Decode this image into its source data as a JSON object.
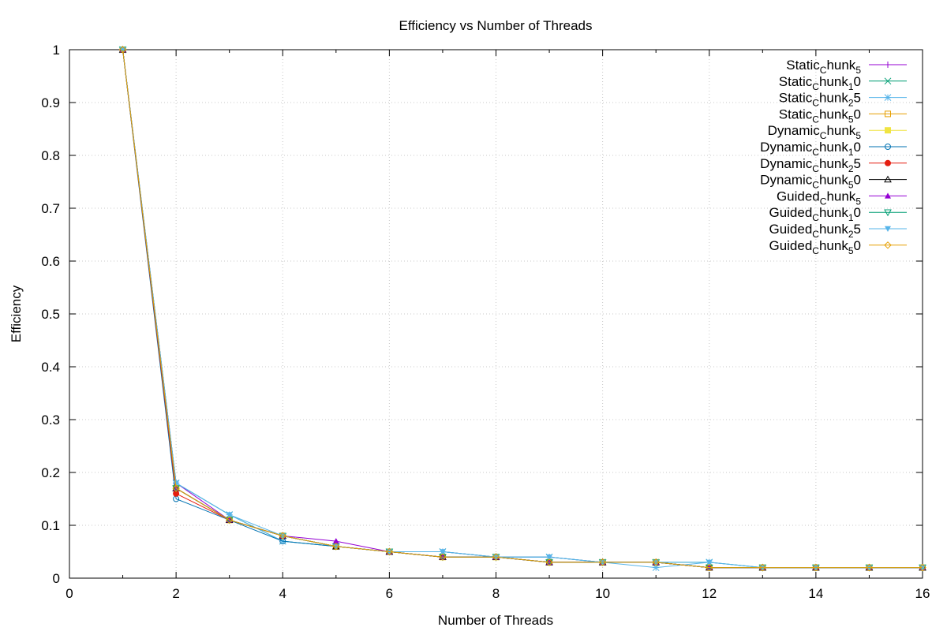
{
  "chart_data": {
    "type": "line",
    "title": "Efficiency vs Number of Threads",
    "xlabel": "Number of Threads",
    "ylabel": "Efficiency",
    "xlim": [
      0,
      16
    ],
    "ylim": [
      0,
      1
    ],
    "xticks": [
      "0",
      "2",
      "4",
      "6",
      "8",
      "10",
      "12",
      "14",
      "16"
    ],
    "yticks": [
      "0",
      "0.1",
      "0.2",
      "0.3",
      "0.4",
      "0.5",
      "0.6",
      "0.7",
      "0.8",
      "0.9",
      "1"
    ],
    "grid": true,
    "legend_position": "top-right",
    "x": [
      1,
      2,
      3,
      4,
      5,
      6,
      7,
      8,
      9,
      10,
      11,
      12,
      13,
      14,
      15,
      16
    ],
    "series": [
      {
        "name": "Static_chunk_5",
        "label_main": "Static",
        "label_sub1": "C",
        "label_mid": "hunk",
        "label_sub2": "5",
        "label_tail": "",
        "color": "#9400d3",
        "marker": "plus",
        "values": [
          1,
          0.18,
          0.11,
          0.08,
          0.06,
          0.05,
          0.05,
          0.04,
          0.04,
          0.03,
          0.03,
          0.02,
          0.02,
          0.02,
          0.02,
          0.02
        ]
      },
      {
        "name": "Static_chunk_10",
        "label_main": "Static",
        "label_sub1": "C",
        "label_mid": "hunk",
        "label_sub2": "1",
        "label_tail": "0",
        "color": "#009e73",
        "marker": "cross",
        "values": [
          1,
          0.18,
          0.12,
          0.07,
          0.06,
          0.05,
          0.05,
          0.04,
          0.04,
          0.03,
          0.03,
          0.03,
          0.02,
          0.02,
          0.02,
          0.02
        ]
      },
      {
        "name": "Static_chunk_25",
        "label_main": "Static",
        "label_sub1": "C",
        "label_mid": "hunk",
        "label_sub2": "2",
        "label_tail": "5",
        "color": "#56b4e9",
        "marker": "star",
        "values": [
          1,
          0.18,
          0.12,
          0.07,
          0.06,
          0.05,
          0.05,
          0.04,
          0.04,
          0.03,
          0.02,
          0.03,
          0.02,
          0.02,
          0.02,
          0.02
        ]
      },
      {
        "name": "Static_chunk_50",
        "label_main": "Static",
        "label_sub1": "C",
        "label_mid": "hunk",
        "label_sub2": "5",
        "label_tail": "0",
        "color": "#e69f00",
        "marker": "square-open",
        "values": [
          1,
          0.17,
          0.11,
          0.08,
          0.06,
          0.05,
          0.04,
          0.04,
          0.03,
          0.03,
          0.03,
          0.02,
          0.02,
          0.02,
          0.02,
          0.02
        ]
      },
      {
        "name": "Dynamic_chunk_5",
        "label_main": "Dynamic",
        "label_sub1": "C",
        "label_mid": "hunk",
        "label_sub2": "5",
        "label_tail": "",
        "color": "#f0e442",
        "marker": "square-filled",
        "values": [
          1,
          0.17,
          0.11,
          0.08,
          0.06,
          0.05,
          0.04,
          0.04,
          0.03,
          0.03,
          0.03,
          0.02,
          0.02,
          0.02,
          0.02,
          0.02
        ]
      },
      {
        "name": "Dynamic_chunk_10",
        "label_main": "Dynamic",
        "label_sub1": "C",
        "label_mid": "hunk",
        "label_sub2": "1",
        "label_tail": "0",
        "color": "#0072b2",
        "marker": "circle-open",
        "values": [
          1,
          0.15,
          0.11,
          0.07,
          0.06,
          0.05,
          0.04,
          0.04,
          0.03,
          0.03,
          0.03,
          0.02,
          0.02,
          0.02,
          0.02,
          0.02
        ]
      },
      {
        "name": "Dynamic_chunk_25",
        "label_main": "Dynamic",
        "label_sub1": "C",
        "label_mid": "hunk",
        "label_sub2": "2",
        "label_tail": "5",
        "color": "#e51e10",
        "marker": "circle-filled",
        "values": [
          1,
          0.16,
          0.11,
          0.08,
          0.06,
          0.05,
          0.04,
          0.04,
          0.03,
          0.03,
          0.03,
          0.02,
          0.02,
          0.02,
          0.02,
          0.02
        ]
      },
      {
        "name": "Dynamic_chunk_50",
        "label_main": "Dynamic",
        "label_sub1": "C",
        "label_mid": "hunk",
        "label_sub2": "5",
        "label_tail": "0",
        "color": "#000000",
        "marker": "triangle-open",
        "values": [
          1,
          0.17,
          0.11,
          0.08,
          0.06,
          0.05,
          0.04,
          0.04,
          0.03,
          0.03,
          0.03,
          0.02,
          0.02,
          0.02,
          0.02,
          0.02
        ]
      },
      {
        "name": "Guided_chunk_5",
        "label_main": "Guided",
        "label_sub1": "C",
        "label_mid": "hunk",
        "label_sub2": "5",
        "label_tail": "",
        "color": "#9400d3",
        "marker": "triangle-filled",
        "values": [
          1,
          0.17,
          0.11,
          0.08,
          0.07,
          0.05,
          0.04,
          0.04,
          0.03,
          0.03,
          0.03,
          0.02,
          0.02,
          0.02,
          0.02,
          0.02
        ]
      },
      {
        "name": "Guided_chunk_10",
        "label_main": "Guided",
        "label_sub1": "C",
        "label_mid": "hunk",
        "label_sub2": "1",
        "label_tail": "0",
        "color": "#009e73",
        "marker": "triangle-down-open",
        "values": [
          1,
          0.17,
          0.11,
          0.08,
          0.06,
          0.05,
          0.04,
          0.04,
          0.03,
          0.03,
          0.03,
          0.02,
          0.02,
          0.02,
          0.02,
          0.02
        ]
      },
      {
        "name": "Guided_chunk_25",
        "label_main": "Guided",
        "label_sub1": "C",
        "label_mid": "hunk",
        "label_sub2": "2",
        "label_tail": "5",
        "color": "#56b4e9",
        "marker": "triangle-down-filled",
        "values": [
          1,
          0.18,
          0.12,
          0.08,
          0.06,
          0.05,
          0.05,
          0.04,
          0.04,
          0.03,
          0.03,
          0.03,
          0.02,
          0.02,
          0.02,
          0.02
        ]
      },
      {
        "name": "Guided_chunk_50",
        "label_main": "Guided",
        "label_sub1": "C",
        "label_mid": "hunk",
        "label_sub2": "5",
        "label_tail": "0",
        "color": "#e69f00",
        "marker": "diamond-open",
        "values": [
          1,
          0.17,
          0.11,
          0.08,
          0.06,
          0.05,
          0.04,
          0.04,
          0.03,
          0.03,
          0.03,
          0.02,
          0.02,
          0.02,
          0.02,
          0.02
        ]
      }
    ]
  }
}
